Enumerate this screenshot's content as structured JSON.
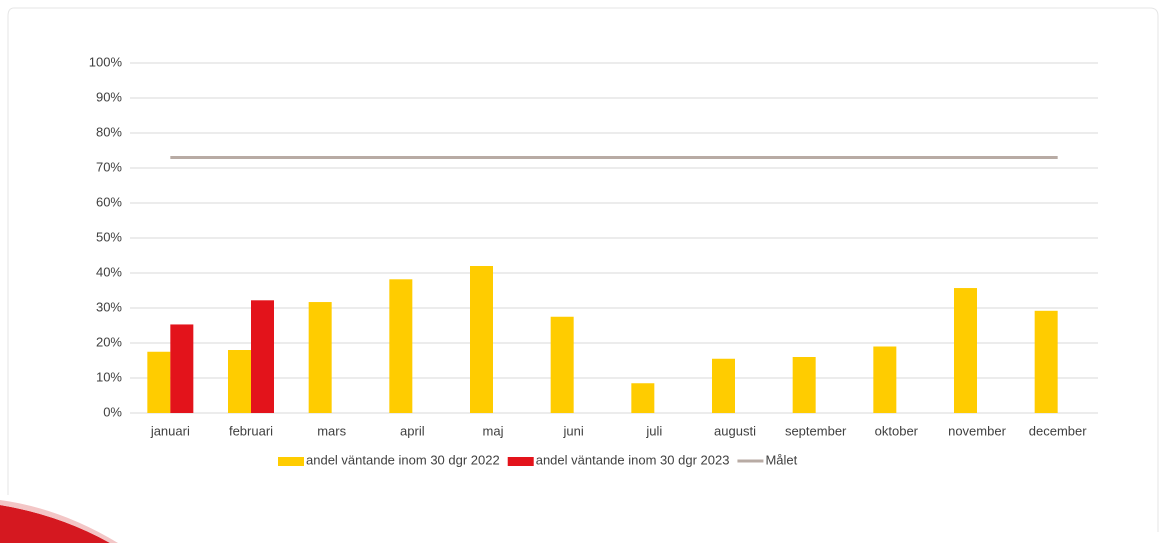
{
  "chart_data": {
    "type": "bar",
    "categories": [
      "januari",
      "februari",
      "mars",
      "april",
      "maj",
      "juni",
      "juli",
      "augusti",
      "september",
      "oktober",
      "november",
      "december"
    ],
    "series": [
      {
        "name": "andel väntande inom 30 dgr 2022",
        "color": "#ffcc00",
        "type": "bar",
        "values": [
          17.5,
          18,
          31.7,
          38.2,
          42,
          27.5,
          8.5,
          15.5,
          16,
          19,
          35.7,
          29.2
        ]
      },
      {
        "name": "andel väntande inom 30 dgr 2023",
        "color": "#e3131b",
        "type": "bar",
        "values": [
          25.3,
          32.2,
          null,
          null,
          null,
          null,
          null,
          null,
          null,
          null,
          null,
          null
        ]
      },
      {
        "name": "Målet",
        "color": "#b8aba4",
        "type": "line",
        "values": [
          73,
          73,
          73,
          73,
          73,
          73,
          73,
          73,
          73,
          73,
          73,
          73
        ]
      }
    ],
    "ylim": [
      0,
      100
    ],
    "yticks": [
      {
        "value": 0,
        "label": "0%"
      },
      {
        "value": 10,
        "label": "10%"
      },
      {
        "value": 20,
        "label": "20%"
      },
      {
        "value": 30,
        "label": "30%"
      },
      {
        "value": 40,
        "label": "40%"
      },
      {
        "value": 50,
        "label": "50%"
      },
      {
        "value": 60,
        "label": "60%"
      },
      {
        "value": 70,
        "label": "70%"
      },
      {
        "value": 80,
        "label": "80%"
      },
      {
        "value": 90,
        "label": "90%"
      },
      {
        "value": 100,
        "label": "100%"
      }
    ],
    "grid": true,
    "legend": "bottom"
  }
}
